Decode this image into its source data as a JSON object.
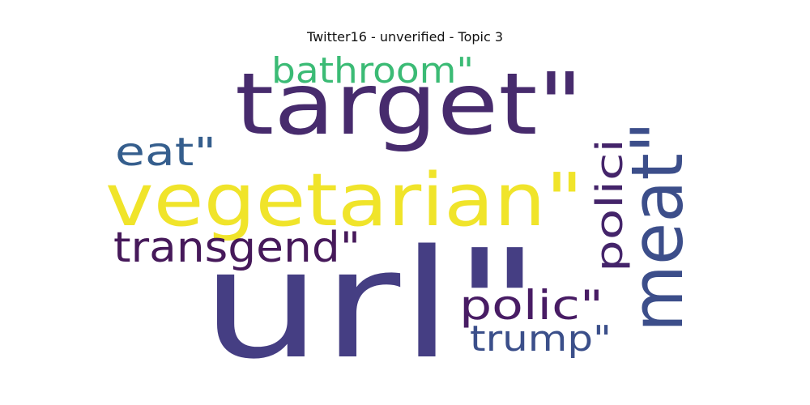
{
  "chart_data": {
    "type": "wordcloud",
    "title": "Twitter16 - unverified - Topic 3",
    "words": [
      {
        "text": "url\"",
        "color": "#453e83"
      },
      {
        "text": "target\"",
        "color": "#472b6d"
      },
      {
        "text": "vegetarian\"",
        "color": "#f0e42a"
      },
      {
        "text": "meat\"",
        "color": "#3c4e8a"
      },
      {
        "text": "bathroom\"",
        "color": "#3bbb75"
      },
      {
        "text": "eat\"",
        "color": "#355e8d"
      },
      {
        "text": "transgend\"",
        "color": "#46195a"
      },
      {
        "text": "polici",
        "color": "#44246a"
      },
      {
        "text": "polic\"",
        "color": "#481c64"
      },
      {
        "text": "trump\"",
        "color": "#3b4f8a"
      }
    ]
  }
}
